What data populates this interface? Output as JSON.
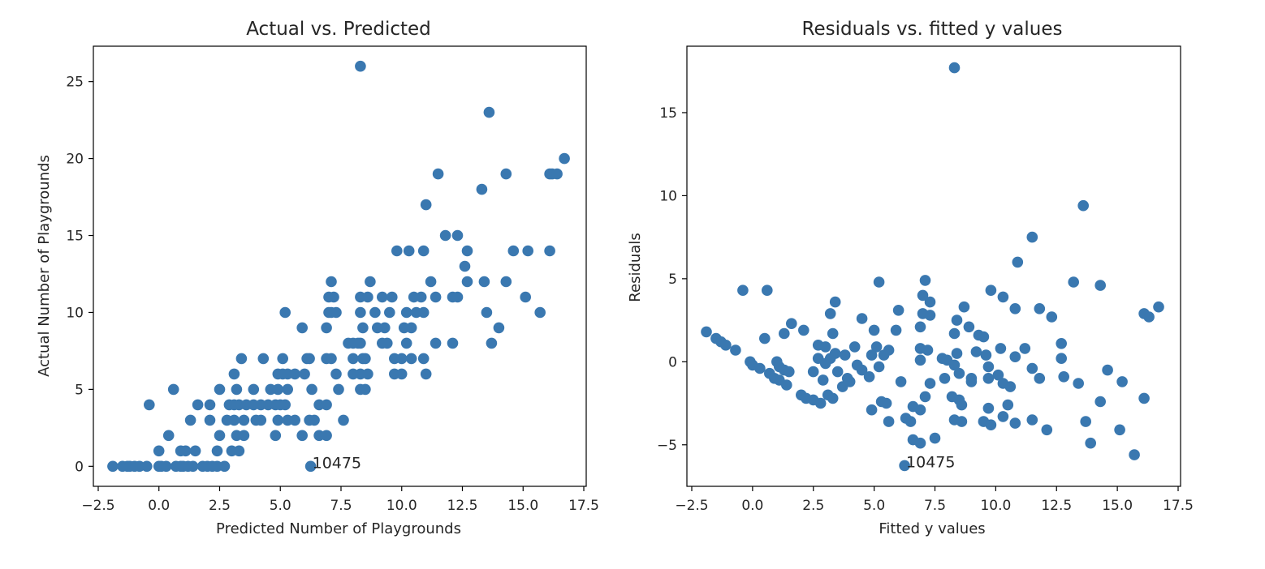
{
  "colors": {
    "point": "#3a78b0",
    "axis": "#000000",
    "text": "#262626"
  },
  "chart_data": [
    {
      "type": "scatter",
      "title": "Actual vs. Predicted",
      "xlabel": "Predicted Number of Playgrounds",
      "ylabel": "Actual Number of Playgrounds",
      "xlim": [
        -2.7,
        17.6
      ],
      "ylim": [
        -1.3,
        27.3
      ],
      "xticks": [
        -2.5,
        0,
        2.5,
        5,
        7.5,
        10,
        12.5,
        15,
        17.5
      ],
      "xtick_labels": [
        "−2.5",
        "0.0",
        "2.5",
        "5.0",
        "7.5",
        "10.0",
        "12.5",
        "15.0",
        "17.5"
      ],
      "yticks": [
        0,
        5,
        10,
        15,
        20,
        25
      ],
      "ytick_labels": [
        "0",
        "5",
        "10",
        "15",
        "20",
        "25"
      ],
      "grid": false,
      "annotations": [
        {
          "text": "10475",
          "x": 6.25,
          "y": 0
        }
      ],
      "points": [
        [
          8.3,
          26
        ],
        [
          13.6,
          23
        ],
        [
          16.7,
          20
        ],
        [
          11.5,
          19
        ],
        [
          14.3,
          19
        ],
        [
          16.1,
          19
        ],
        [
          16.2,
          19
        ],
        [
          16.4,
          19
        ],
        [
          13.3,
          18
        ],
        [
          11.0,
          17
        ],
        [
          11.8,
          15
        ],
        [
          12.3,
          15
        ],
        [
          9.8,
          14
        ],
        [
          10.3,
          14
        ],
        [
          10.9,
          14
        ],
        [
          12.7,
          14
        ],
        [
          14.6,
          14
        ],
        [
          15.2,
          14
        ],
        [
          16.1,
          14
        ],
        [
          12.6,
          13
        ],
        [
          7.1,
          12
        ],
        [
          8.7,
          12
        ],
        [
          11.2,
          12
        ],
        [
          12.7,
          12
        ],
        [
          13.4,
          12
        ],
        [
          14.3,
          12
        ],
        [
          7.0,
          11
        ],
        [
          7.2,
          11
        ],
        [
          8.3,
          11
        ],
        [
          8.6,
          11
        ],
        [
          9.2,
          11
        ],
        [
          9.6,
          11
        ],
        [
          10.5,
          11
        ],
        [
          10.8,
          11
        ],
        [
          11.4,
          11
        ],
        [
          12.1,
          11
        ],
        [
          12.3,
          11
        ],
        [
          15.1,
          11
        ],
        [
          5.2,
          10
        ],
        [
          7.0,
          10
        ],
        [
          7.1,
          10
        ],
        [
          7.3,
          10
        ],
        [
          8.3,
          10
        ],
        [
          8.9,
          10
        ],
        [
          9.5,
          10
        ],
        [
          10.2,
          10
        ],
        [
          10.6,
          10
        ],
        [
          10.9,
          10
        ],
        [
          13.5,
          10
        ],
        [
          15.7,
          10
        ],
        [
          5.9,
          9
        ],
        [
          6.9,
          9
        ],
        [
          8.4,
          9
        ],
        [
          9.0,
          9
        ],
        [
          9.3,
          9
        ],
        [
          10.1,
          9
        ],
        [
          10.4,
          9
        ],
        [
          14.0,
          9
        ],
        [
          7.8,
          8
        ],
        [
          8.0,
          8
        ],
        [
          8.2,
          8
        ],
        [
          8.3,
          8
        ],
        [
          9.2,
          8
        ],
        [
          9.4,
          8
        ],
        [
          10.2,
          8
        ],
        [
          11.4,
          8
        ],
        [
          12.1,
          8
        ],
        [
          13.7,
          8
        ],
        [
          3.4,
          7
        ],
        [
          4.3,
          7
        ],
        [
          5.1,
          7
        ],
        [
          6.1,
          7
        ],
        [
          6.2,
          7
        ],
        [
          6.9,
          7
        ],
        [
          7.1,
          7
        ],
        [
          8.0,
          7
        ],
        [
          8.4,
          7
        ],
        [
          8.5,
          7
        ],
        [
          9.7,
          7
        ],
        [
          10.0,
          7
        ],
        [
          10.4,
          7
        ],
        [
          10.9,
          7
        ],
        [
          3.1,
          6
        ],
        [
          4.9,
          6
        ],
        [
          5.1,
          6
        ],
        [
          5.3,
          6
        ],
        [
          5.6,
          6
        ],
        [
          6.0,
          6
        ],
        [
          7.3,
          6
        ],
        [
          8.0,
          6
        ],
        [
          8.3,
          6
        ],
        [
          8.6,
          6
        ],
        [
          9.7,
          6
        ],
        [
          10.0,
          6
        ],
        [
          11.0,
          6
        ],
        [
          2.5,
          5
        ],
        [
          3.2,
          5
        ],
        [
          3.9,
          5
        ],
        [
          4.6,
          5
        ],
        [
          4.9,
          5
        ],
        [
          5.3,
          5
        ],
        [
          6.3,
          5
        ],
        [
          7.4,
          5
        ],
        [
          8.3,
          5
        ],
        [
          8.5,
          5
        ],
        [
          0.6,
          5
        ],
        [
          1.6,
          4
        ],
        [
          2.1,
          4
        ],
        [
          2.9,
          4
        ],
        [
          3.1,
          4
        ],
        [
          3.3,
          4
        ],
        [
          3.6,
          4
        ],
        [
          3.9,
          4
        ],
        [
          4.2,
          4
        ],
        [
          4.5,
          4
        ],
        [
          4.8,
          4
        ],
        [
          5.0,
          4
        ],
        [
          5.2,
          4
        ],
        [
          6.6,
          4
        ],
        [
          6.9,
          4
        ],
        [
          -0.4,
          4
        ],
        [
          1.3,
          3
        ],
        [
          2.1,
          3
        ],
        [
          2.8,
          3
        ],
        [
          3.1,
          3
        ],
        [
          3.5,
          3
        ],
        [
          4.0,
          3
        ],
        [
          4.2,
          3
        ],
        [
          4.9,
          3
        ],
        [
          5.3,
          3
        ],
        [
          5.6,
          3
        ],
        [
          6.2,
          3
        ],
        [
          6.4,
          3
        ],
        [
          7.6,
          3
        ],
        [
          0.4,
          2
        ],
        [
          2.5,
          2
        ],
        [
          3.2,
          2
        ],
        [
          3.5,
          2
        ],
        [
          4.8,
          2
        ],
        [
          5.9,
          2
        ],
        [
          6.6,
          2
        ],
        [
          6.9,
          2
        ],
        [
          0.0,
          1
        ],
        [
          0.9,
          1
        ],
        [
          1.1,
          1
        ],
        [
          1.5,
          1
        ],
        [
          2.4,
          1
        ],
        [
          3.0,
          1
        ],
        [
          3.3,
          1
        ],
        [
          -1.9,
          0
        ],
        [
          -1.5,
          0
        ],
        [
          -1.3,
          0
        ],
        [
          -1.2,
          0
        ],
        [
          -1.0,
          0
        ],
        [
          -0.8,
          0
        ],
        [
          -0.5,
          0
        ],
        [
          0.0,
          0
        ],
        [
          0.1,
          0
        ],
        [
          0.3,
          0
        ],
        [
          0.7,
          0
        ],
        [
          0.9,
          0
        ],
        [
          1.0,
          0
        ],
        [
          1.2,
          0
        ],
        [
          1.4,
          0
        ],
        [
          1.8,
          0
        ],
        [
          2.0,
          0
        ],
        [
          2.2,
          0
        ],
        [
          2.4,
          0
        ],
        [
          2.7,
          0
        ],
        [
          6.25,
          0
        ]
      ]
    },
    {
      "type": "scatter",
      "title": "Residuals vs. fitted y values",
      "xlabel": "Fitted y values",
      "ylabel": "Residuals",
      "xlim": [
        -2.7,
        17.6
      ],
      "ylim": [
        -7.5,
        19.0
      ],
      "xticks": [
        -2.5,
        0,
        2.5,
        5,
        7.5,
        10,
        12.5,
        15,
        17.5
      ],
      "xtick_labels": [
        "−2.5",
        "0.0",
        "2.5",
        "5.0",
        "7.5",
        "10.0",
        "12.5",
        "15.0",
        "17.5"
      ],
      "yticks": [
        -5,
        0,
        5,
        10,
        15
      ],
      "ytick_labels": [
        "−5",
        "0",
        "5",
        "10",
        "15"
      ],
      "grid": false,
      "annotations": [
        {
          "text": "10475",
          "x": 6.25,
          "y": -6.25
        }
      ],
      "points": [
        [
          8.3,
          17.7
        ],
        [
          13.6,
          9.4
        ],
        [
          11.5,
          7.5
        ],
        [
          10.9,
          6.0
        ],
        [
          5.2,
          4.8
        ],
        [
          7.1,
          4.9
        ],
        [
          13.2,
          4.8
        ],
        [
          14.3,
          4.6
        ],
        [
          -0.4,
          4.3
        ],
        [
          0.6,
          4.3
        ],
        [
          9.8,
          4.3
        ],
        [
          10.3,
          3.9
        ],
        [
          7.0,
          4.0
        ],
        [
          7.3,
          3.6
        ],
        [
          3.4,
          3.6
        ],
        [
          16.7,
          3.3
        ],
        [
          8.7,
          3.3
        ],
        [
          10.8,
          3.2
        ],
        [
          11.8,
          3.2
        ],
        [
          6.0,
          3.1
        ],
        [
          16.1,
          2.9
        ],
        [
          3.2,
          2.9
        ],
        [
          7.0,
          2.9
        ],
        [
          7.3,
          2.8
        ],
        [
          16.3,
          2.7
        ],
        [
          12.3,
          2.7
        ],
        [
          4.5,
          2.6
        ],
        [
          8.4,
          2.5
        ],
        [
          1.6,
          2.3
        ],
        [
          6.9,
          2.1
        ],
        [
          8.9,
          2.1
        ],
        [
          5.9,
          1.9
        ],
        [
          5.0,
          1.9
        ],
        [
          2.1,
          1.9
        ],
        [
          -1.9,
          1.8
        ],
        [
          3.3,
          1.7
        ],
        [
          8.3,
          1.7
        ],
        [
          9.3,
          1.6
        ],
        [
          9.5,
          1.5
        ],
        [
          1.3,
          1.7
        ],
        [
          0.5,
          1.4
        ],
        [
          -1.5,
          1.4
        ],
        [
          -1.3,
          1.2
        ],
        [
          -1.1,
          1.0
        ],
        [
          2.7,
          1.0
        ],
        [
          12.7,
          1.1
        ],
        [
          3.0,
          0.9
        ],
        [
          4.2,
          0.9
        ],
        [
          5.1,
          0.9
        ],
        [
          5.6,
          0.7
        ],
        [
          6.9,
          0.8
        ],
        [
          7.2,
          0.7
        ],
        [
          9.2,
          0.6
        ],
        [
          10.2,
          0.8
        ],
        [
          11.2,
          0.8
        ],
        [
          -0.7,
          0.7
        ],
        [
          3.4,
          0.5
        ],
        [
          3.8,
          0.4
        ],
        [
          4.9,
          0.4
        ],
        [
          5.4,
          0.4
        ],
        [
          8.4,
          0.5
        ],
        [
          9.6,
          0.4
        ],
        [
          2.7,
          0.2
        ],
        [
          3.2,
          0.2
        ],
        [
          6.9,
          0.1
        ],
        [
          7.8,
          0.2
        ],
        [
          8.0,
          0.1
        ],
        [
          10.8,
          0.3
        ],
        [
          12.7,
          0.2
        ],
        [
          -0.1,
          0.0
        ],
        [
          1.0,
          0.0
        ],
        [
          3.0,
          -0.1
        ],
        [
          4.3,
          -0.2
        ],
        [
          5.2,
          -0.3
        ],
        [
          8.3,
          -0.2
        ],
        [
          9.7,
          -0.3
        ],
        [
          11.5,
          -0.4
        ],
        [
          14.6,
          -0.5
        ],
        [
          0.0,
          -0.2
        ],
        [
          0.3,
          -0.4
        ],
        [
          1.1,
          -0.3
        ],
        [
          1.3,
          -0.5
        ],
        [
          1.5,
          -0.6
        ],
        [
          3.5,
          -0.6
        ],
        [
          4.5,
          -0.5
        ],
        [
          2.5,
          -0.6
        ],
        [
          0.7,
          -0.7
        ],
        [
          8.5,
          -0.7
        ],
        [
          10.1,
          -0.8
        ],
        [
          12.8,
          -0.9
        ],
        [
          9.0,
          -1.0
        ],
        [
          0.9,
          -1.0
        ],
        [
          1.1,
          -1.1
        ],
        [
          2.9,
          -1.1
        ],
        [
          3.9,
          -1.0
        ],
        [
          4.8,
          -0.9
        ],
        [
          6.1,
          -1.2
        ],
        [
          7.9,
          -1.0
        ],
        [
          9.7,
          -1.0
        ],
        [
          11.8,
          -1.0
        ],
        [
          1.4,
          -1.4
        ],
        [
          3.7,
          -1.5
        ],
        [
          4.0,
          -1.2
        ],
        [
          7.3,
          -1.3
        ],
        [
          9.0,
          -1.2
        ],
        [
          10.3,
          -1.3
        ],
        [
          10.6,
          -1.5
        ],
        [
          13.4,
          -1.3
        ],
        [
          15.2,
          -1.2
        ],
        [
          2.0,
          -2.0
        ],
        [
          2.2,
          -2.2
        ],
        [
          2.5,
          -2.3
        ],
        [
          2.8,
          -2.5
        ],
        [
          3.1,
          -2.0
        ],
        [
          3.3,
          -2.2
        ],
        [
          5.3,
          -2.4
        ],
        [
          5.5,
          -2.5
        ],
        [
          7.1,
          -2.1
        ],
        [
          8.2,
          -2.1
        ],
        [
          8.5,
          -2.3
        ],
        [
          8.6,
          -2.6
        ],
        [
          6.6,
          -2.7
        ],
        [
          6.9,
          -2.9
        ],
        [
          4.9,
          -2.9
        ],
        [
          9.7,
          -2.8
        ],
        [
          10.5,
          -2.6
        ],
        [
          14.3,
          -2.4
        ],
        [
          16.1,
          -2.2
        ],
        [
          5.6,
          -3.6
        ],
        [
          6.3,
          -3.4
        ],
        [
          6.5,
          -3.6
        ],
        [
          8.3,
          -3.5
        ],
        [
          8.6,
          -3.6
        ],
        [
          9.5,
          -3.6
        ],
        [
          9.8,
          -3.8
        ],
        [
          10.3,
          -3.3
        ],
        [
          10.8,
          -3.7
        ],
        [
          11.5,
          -3.5
        ],
        [
          12.1,
          -4.1
        ],
        [
          13.7,
          -3.6
        ],
        [
          15.1,
          -4.1
        ],
        [
          6.6,
          -4.7
        ],
        [
          6.9,
          -4.9
        ],
        [
          7.5,
          -4.6
        ],
        [
          13.9,
          -4.9
        ],
        [
          15.7,
          -5.6
        ],
        [
          6.25,
          -6.25
        ]
      ]
    }
  ]
}
